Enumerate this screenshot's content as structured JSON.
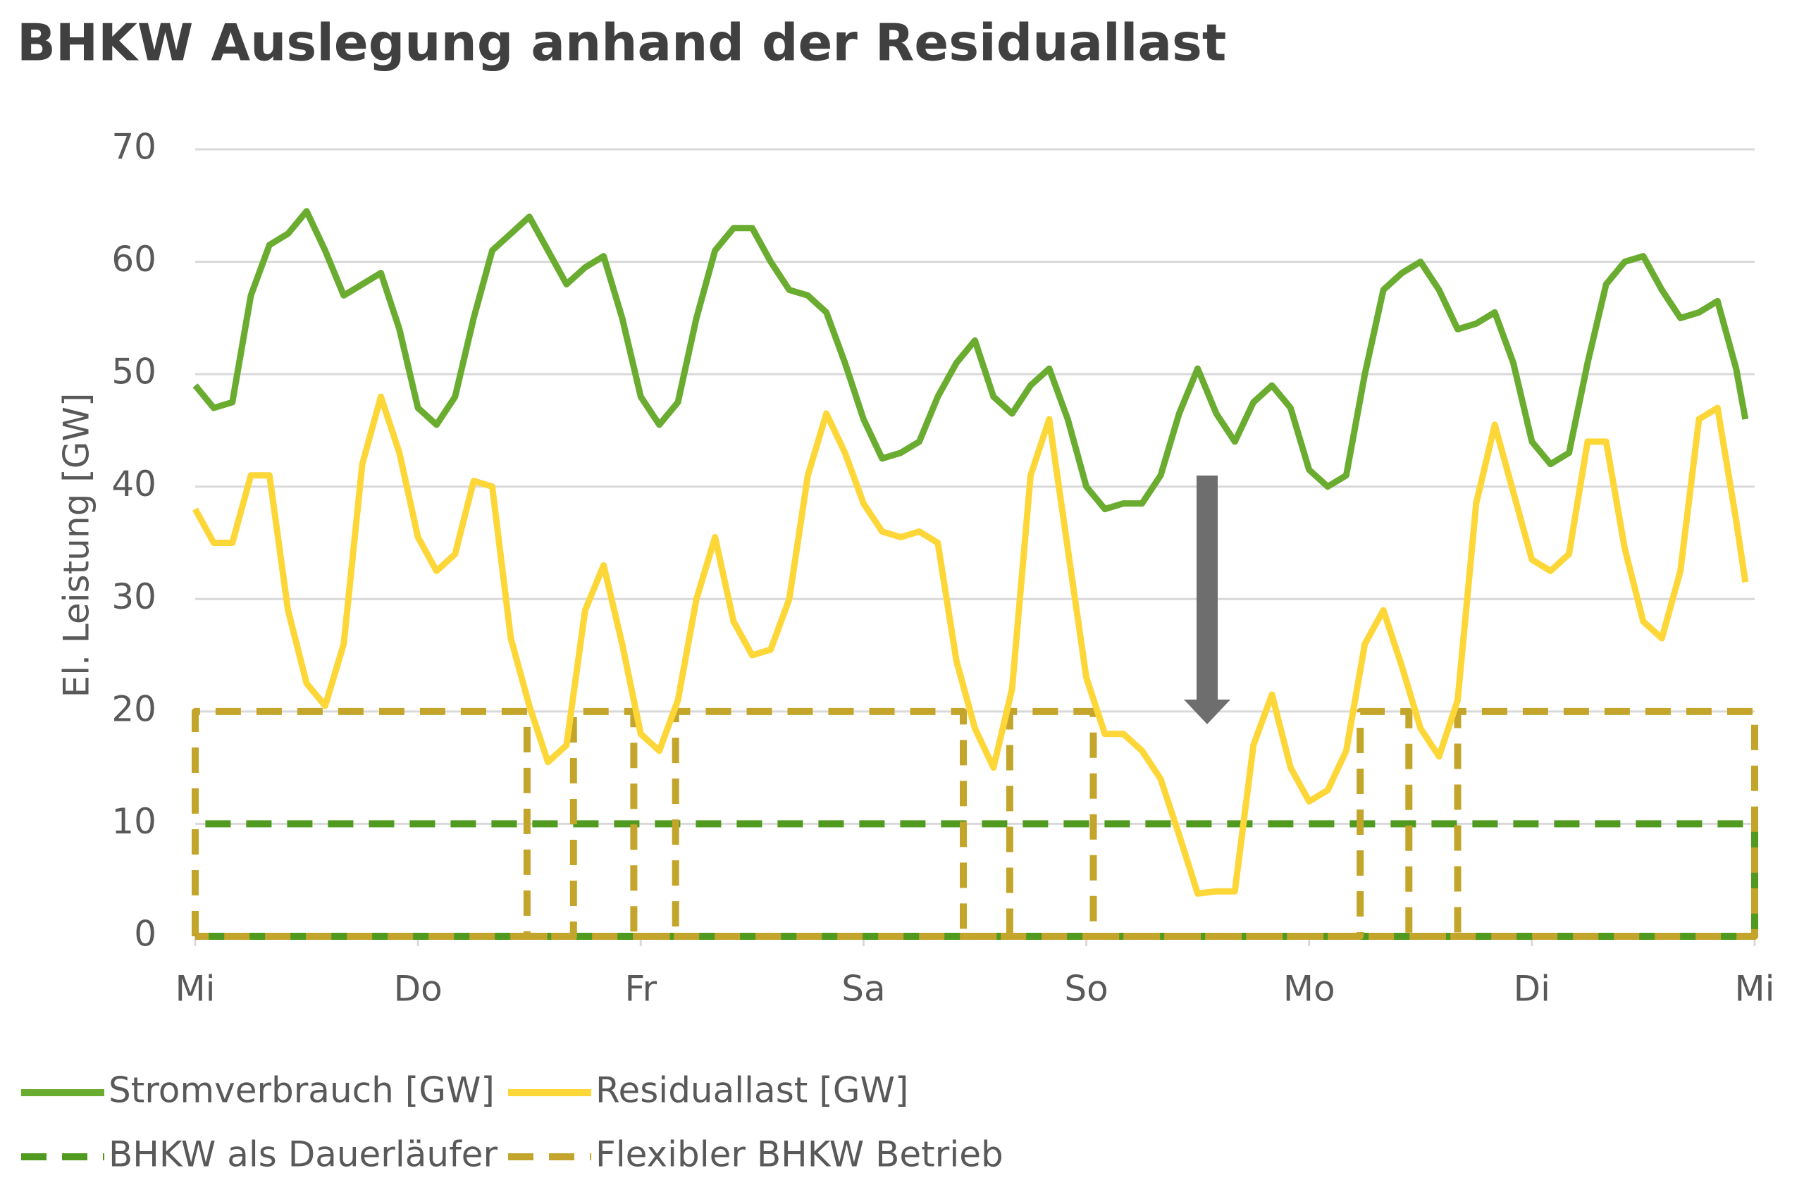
{
  "chart_data": {
    "type": "line",
    "title": "BHKW Auslegung anhand der Residuallast",
    "y_label": "El. Leistung [GW]",
    "x": [
      0,
      2,
      4,
      6,
      8,
      10,
      12,
      14,
      16,
      18,
      20,
      22,
      24,
      26,
      28,
      30,
      32,
      34,
      36,
      38,
      40,
      42,
      44,
      46,
      48,
      50,
      52,
      54,
      56,
      58,
      60,
      62,
      64,
      66,
      68,
      70,
      72,
      74,
      76,
      78,
      80,
      82,
      84,
      86,
      88,
      90,
      92,
      94,
      96,
      98,
      100,
      102,
      104,
      106,
      108,
      110,
      112,
      114,
      116,
      118,
      120,
      122,
      124,
      126,
      128,
      130,
      132,
      134,
      136,
      138,
      140,
      142,
      144,
      146,
      148,
      150,
      152,
      154,
      156,
      158,
      160,
      162,
      164,
      166,
      167
    ],
    "xlim": [
      0,
      168
    ],
    "xticks": [
      {
        "value": 0,
        "label": "Mi"
      },
      {
        "value": 24,
        "label": "Do"
      },
      {
        "value": 48,
        "label": "Fr"
      },
      {
        "value": 72,
        "label": "Sa"
      },
      {
        "value": 96,
        "label": "So"
      },
      {
        "value": 120,
        "label": "Mo"
      },
      {
        "value": 144,
        "label": "Di"
      },
      {
        "value": 168,
        "label": "Mi"
      }
    ],
    "ylim": [
      0,
      70
    ],
    "yticks": [
      0,
      10,
      20,
      30,
      40,
      50,
      60,
      70
    ],
    "grid": true,
    "series": [
      {
        "name": "Stromverbrauch [GW]",
        "color": "#6aac2f",
        "style": "solid",
        "values": [
          49,
          47,
          47.5,
          57,
          61.5,
          62.5,
          64.5,
          61,
          57,
          58,
          59,
          54,
          47,
          45.5,
          48,
          55,
          61,
          62.5,
          64,
          61,
          58,
          59.5,
          60.5,
          55,
          48,
          45.5,
          47.5,
          55,
          61,
          63,
          63,
          60,
          57.5,
          57,
          55.5,
          51,
          46,
          42.5,
          43,
          44,
          48,
          51,
          53,
          48,
          46.5,
          49,
          50.5,
          46,
          40,
          38,
          38.5,
          38.5,
          41,
          46.5,
          50.5,
          46.5,
          44,
          47.5,
          49,
          47,
          41.5,
          40,
          41,
          50,
          57.5,
          59,
          60,
          57.5,
          54,
          54.5,
          55.5,
          51,
          44,
          42,
          43,
          51,
          58,
          60,
          60.5,
          57.5,
          55,
          55.5,
          56.5,
          50.5,
          46
        ]
      },
      {
        "name": "Residuallast [GW]",
        "color": "#fdd638",
        "style": "solid",
        "values": [
          38,
          35,
          35,
          41,
          41,
          29,
          22.5,
          20.5,
          26,
          42,
          48,
          43,
          35.5,
          32.5,
          34,
          40.5,
          40,
          26.5,
          20.5,
          15.5,
          17,
          29,
          33,
          26,
          18,
          16.5,
          21,
          30,
          35.5,
          28,
          25,
          25.5,
          30,
          41,
          46.5,
          43,
          38.5,
          36,
          35.5,
          36,
          35,
          24.5,
          18.5,
          15,
          22,
          41,
          46,
          34.5,
          23,
          18,
          18,
          16.5,
          14,
          9,
          3.8,
          4,
          4,
          17,
          21.5,
          15,
          12,
          13,
          16.5,
          26,
          29,
          24,
          18.5,
          16,
          21,
          38.5,
          45.5,
          39.5,
          33.5,
          32.5,
          34,
          44,
          44,
          34.5,
          28,
          26.5,
          32.5,
          46,
          47,
          37,
          31.5
        ]
      },
      {
        "name": "BHKW als Dauerläufer",
        "color": "#4f9a1f",
        "style": "dashed",
        "x": [
          0,
          0,
          168,
          168,
          0
        ],
        "values": [
          0,
          10,
          10,
          0,
          0
        ]
      },
      {
        "name": "Flexibler BHKW Betrieb",
        "color": "#c4a52b",
        "style": "dashed",
        "x": [
          0,
          0,
          35.75,
          35.75,
          40.75,
          40.75,
          47.25,
          47.25,
          51.75,
          51.75,
          82.75,
          82.75,
          87.75,
          87.75,
          96.75,
          96.75,
          125.5,
          125.5,
          130.75,
          130.75,
          136,
          136,
          168,
          168,
          0
        ],
        "values": [
          0,
          20,
          20,
          0,
          0,
          20,
          20,
          0,
          0,
          20,
          20,
          0,
          0,
          20,
          20,
          0,
          0,
          20,
          20,
          0,
          0,
          20,
          20,
          0,
          0
        ]
      }
    ]
  }
}
